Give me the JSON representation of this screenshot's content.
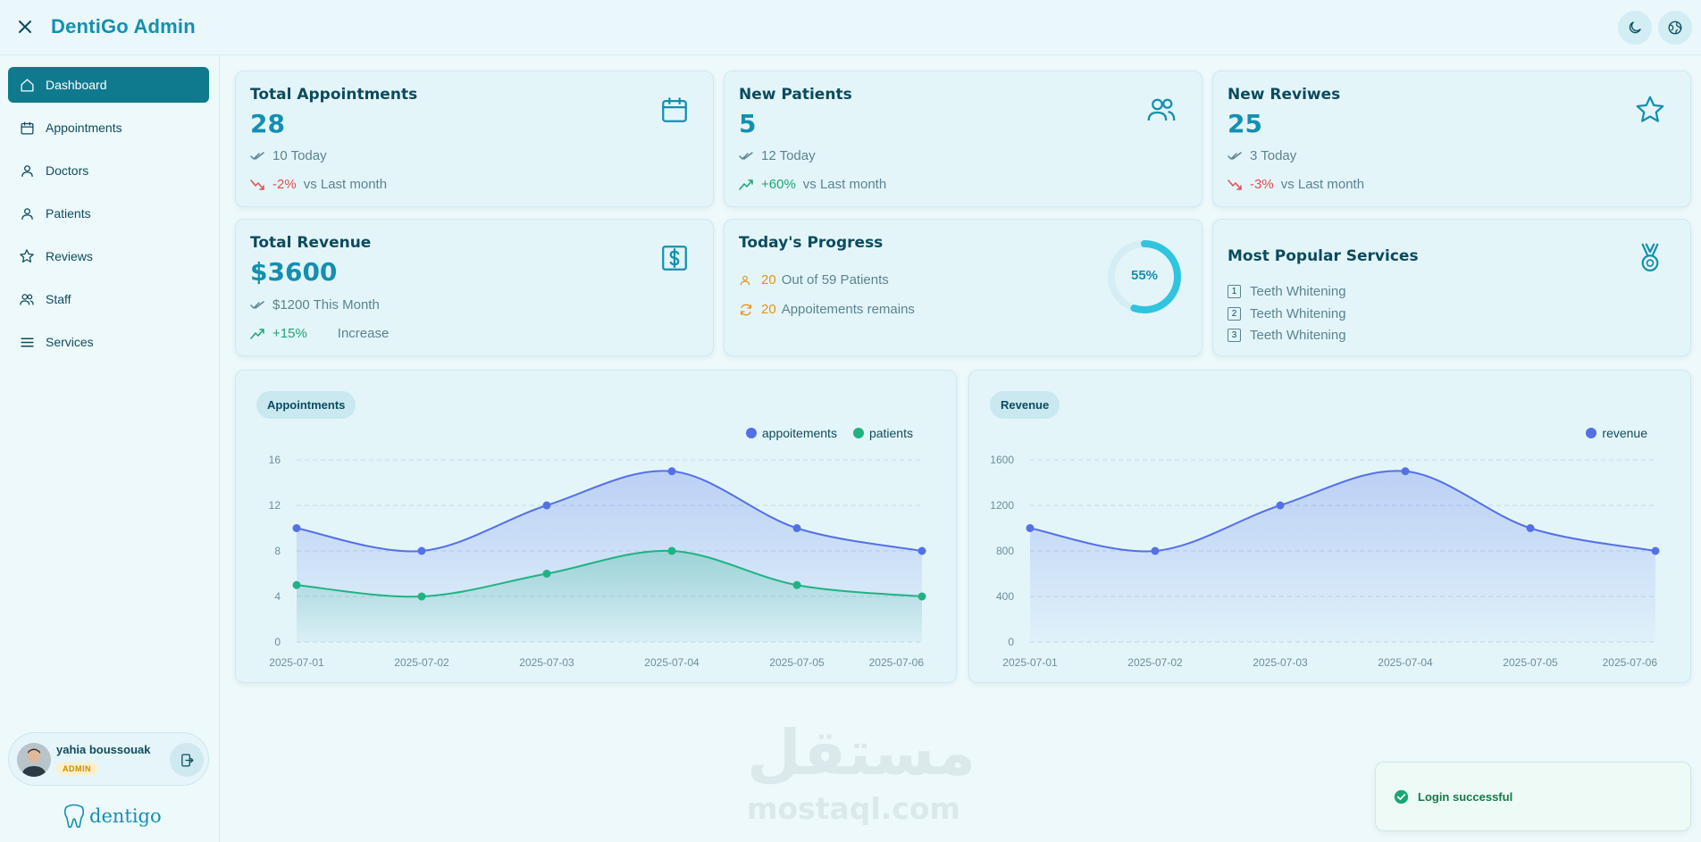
{
  "app": {
    "title": "DentiGo Admin"
  },
  "sidebar": {
    "items": [
      {
        "label": "Dashboard",
        "icon": "home-icon",
        "active": true
      },
      {
        "label": "Appointments",
        "icon": "calendar-icon"
      },
      {
        "label": "Doctors",
        "icon": "user-icon"
      },
      {
        "label": "Patients",
        "icon": "user-icon"
      },
      {
        "label": "Reviews",
        "icon": "star-icon"
      },
      {
        "label": "Staff",
        "icon": "users-icon"
      },
      {
        "label": "Services",
        "icon": "menu-icon"
      }
    ],
    "user": {
      "name": "yahia boussouak",
      "role": "ADMIN"
    },
    "logo": "dentigo"
  },
  "stats": {
    "appointments": {
      "title": "Total Appointments",
      "value": "28",
      "today": "10 Today",
      "change": "-2%",
      "change_text": "vs Last month"
    },
    "patients": {
      "title": "New Patients",
      "value": "5",
      "today": "12 Today",
      "change": "+60%",
      "change_text": "vs Last month"
    },
    "reviews": {
      "title": "New Reviwes",
      "value": "25",
      "today": "3 Today",
      "change": "-3%",
      "change_text": "vs Last month"
    },
    "revenue": {
      "title": "Total Revenue",
      "value": "$3600",
      "month": "$1200 This Month",
      "change": "+15%",
      "change_text": "Increase"
    },
    "progress": {
      "title": "Today's Progress",
      "patients_num": "20",
      "patients_text": "Out of 59 Patients",
      "remain_num": "20",
      "remain_text": "Appoitements remains",
      "percent": 55,
      "percent_label": "55%"
    },
    "services": {
      "title": "Most Popular Services",
      "items": [
        "Teeth Whitening",
        "Teeth Whitening",
        "Teeth Whitening"
      ]
    }
  },
  "chart_data": [
    {
      "type": "area",
      "tag": "Appointments",
      "x": [
        "2025-07-01",
        "2025-07-02",
        "2025-07-03",
        "2025-07-04",
        "2025-07-05",
        "2025-07-06"
      ],
      "series": [
        {
          "name": "appoitements",
          "values": [
            10,
            8,
            12,
            15,
            10,
            8
          ],
          "color": "#5470e8"
        },
        {
          "name": "patients",
          "values": [
            5,
            4,
            6,
            8,
            5,
            4
          ],
          "color": "#1fb383"
        }
      ],
      "yticks": [
        0,
        4,
        8,
        12,
        16
      ],
      "ylim": [
        0,
        16
      ],
      "grid": true,
      "legend": "top-right"
    },
    {
      "type": "area",
      "tag": "Revenue",
      "x": [
        "2025-07-01",
        "2025-07-02",
        "2025-07-03",
        "2025-07-04",
        "2025-07-05",
        "2025-07-06"
      ],
      "series": [
        {
          "name": "revenue",
          "values": [
            1000,
            800,
            1200,
            1500,
            1000,
            800
          ],
          "color": "#5470e8"
        }
      ],
      "yticks": [
        0,
        400,
        800,
        1200,
        1600
      ],
      "ylim": [
        0,
        1600
      ],
      "grid": true,
      "legend": "top-right"
    }
  ],
  "watermark": {
    "arabic": "مستقل",
    "latin": "mostaql.com"
  },
  "toast": {
    "message": "Login successful"
  }
}
